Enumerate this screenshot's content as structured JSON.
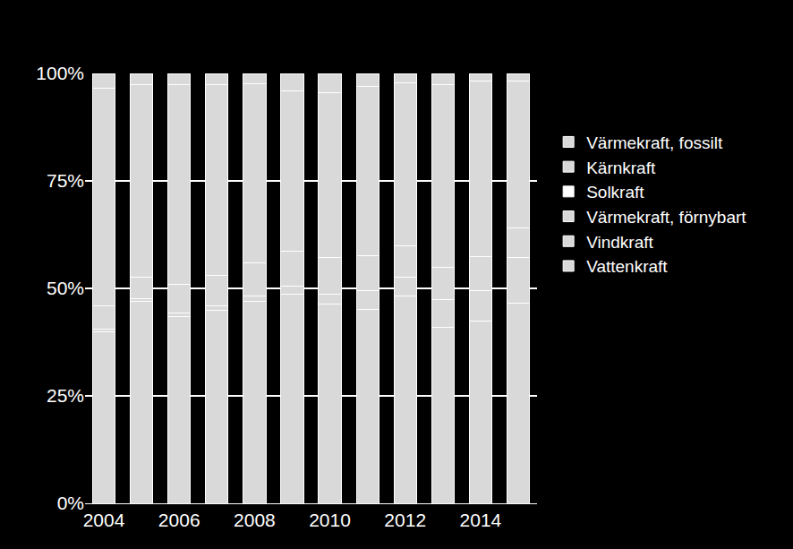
{
  "chart_data": {
    "type": "bar",
    "stacked": true,
    "grid": true,
    "legend": "right",
    "categories": [
      "2004",
      null,
      "2006",
      null,
      "2008",
      null,
      "2010",
      null,
      "2012",
      null,
      "2014",
      null
    ],
    "series": [
      {
        "name": "Vattenkraft",
        "color": "#d9d9d9",
        "values": [
          40,
          47,
          43.5,
          45,
          47,
          48.7,
          46.3,
          45.2,
          48.3,
          41,
          42.3,
          46.6
        ]
      },
      {
        "name": "Vindkraft",
        "color": "#d9d9d9",
        "values": [
          0.5,
          0.7,
          0.7,
          1,
          1.3,
          1.8,
          2.3,
          4.3,
          4.4,
          6.5,
          7.2,
          10.6
        ]
      },
      {
        "name": "Värmekraft, förnybart",
        "color": "#d9d9d9",
        "values": [
          5.5,
          5,
          6.8,
          7,
          7.7,
          8.2,
          8.6,
          8.1,
          7.3,
          7.5,
          7.8,
          6.8
        ]
      },
      {
        "name": "Solkraft",
        "color": "#ffffff",
        "values": [
          0,
          0,
          0,
          0,
          0,
          0,
          0,
          0,
          0,
          0,
          0,
          0
        ]
      },
      {
        "name": "Kärnkraft",
        "color": "#d9d9d9",
        "values": [
          50.5,
          44.8,
          46.3,
          44.3,
          41.6,
          37.3,
          38.4,
          39.4,
          37.8,
          42.3,
          40.9,
          34.2
        ]
      },
      {
        "name": "Värmekraft, fossilt",
        "color": "#d9d9d9",
        "values": [
          3.5,
          2.5,
          2.7,
          2.7,
          2.4,
          4,
          4.4,
          3,
          2.2,
          2.7,
          1.8,
          1.8
        ]
      }
    ],
    "ylim": [
      0,
      100
    ],
    "yticks": [
      {
        "value": 0,
        "label": "0%"
      },
      {
        "value": 25,
        "label": "25%"
      },
      {
        "value": 50,
        "label": "50%"
      },
      {
        "value": 75,
        "label": "75%"
      },
      {
        "value": 100,
        "label": "100%"
      }
    ]
  }
}
